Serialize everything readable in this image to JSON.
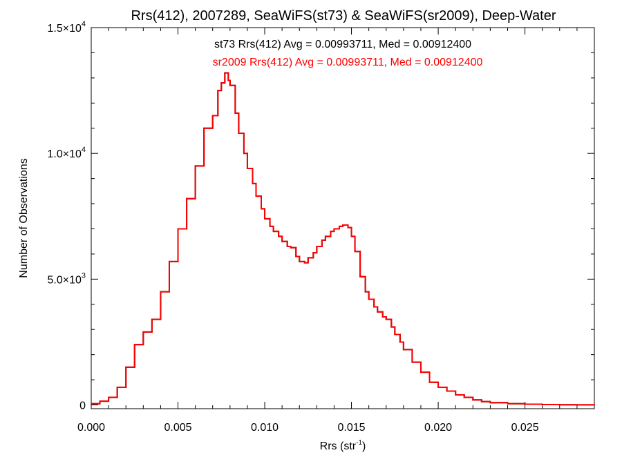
{
  "chart_data": {
    "type": "line",
    "title": "Rrs(412), 2007289, SeaWiFS(st73) & SeaWiFS(sr2009), Deep-Water",
    "xlabel_main": "Rrs (str",
    "xlabel_sup": "-1",
    "xlabel_close": ")",
    "ylabel": "Number of Observations",
    "xlim": [
      0.0,
      0.029
    ],
    "ylim": [
      -150,
      15000
    ],
    "x_ticks": [
      {
        "value": 0.0,
        "label": "0.000"
      },
      {
        "value": 0.005,
        "label": "0.005"
      },
      {
        "value": 0.01,
        "label": "0.010"
      },
      {
        "value": 0.015,
        "label": "0.015"
      },
      {
        "value": 0.02,
        "label": "0.020"
      },
      {
        "value": 0.025,
        "label": "0.025"
      }
    ],
    "x_minor_step": 0.001,
    "y_ticks": [
      {
        "value": 0,
        "mant": "0",
        "exp": ""
      },
      {
        "value": 5000,
        "mant": "5.0×10",
        "exp": "3"
      },
      {
        "value": 10000,
        "mant": "1.0×10",
        "exp": "4"
      },
      {
        "value": 15000,
        "mant": "1.5×10",
        "exp": "4"
      }
    ],
    "y_minor_step": 1000,
    "annotations": [
      {
        "text": "st73 Rrs(412) Avg = 0.00993711, Med = 0.00912400",
        "color": "#000000"
      },
      {
        "text": "sr2009 Rrs(412) Avg = 0.00993711, Med = 0.00912400",
        "color": "#ff0000"
      }
    ],
    "series": [
      {
        "name": "st73",
        "color": "#000000",
        "x": [
          0.0,
          0.0005,
          0.001,
          0.0015,
          0.002,
          0.0025,
          0.003,
          0.0035,
          0.004,
          0.0045,
          0.005,
          0.0055,
          0.006,
          0.0065,
          0.007,
          0.0073,
          0.0075,
          0.0077,
          0.0079,
          0.008,
          0.0083,
          0.0085,
          0.0088,
          0.009,
          0.0093,
          0.0095,
          0.0098,
          0.01,
          0.0103,
          0.0105,
          0.0108,
          0.011,
          0.0113,
          0.0115,
          0.0118,
          0.012,
          0.0123,
          0.0125,
          0.0128,
          0.013,
          0.0133,
          0.0135,
          0.0138,
          0.014,
          0.0143,
          0.0145,
          0.0148,
          0.015,
          0.0152,
          0.0155,
          0.0158,
          0.016,
          0.0163,
          0.0165,
          0.0168,
          0.017,
          0.0173,
          0.0175,
          0.0178,
          0.018,
          0.0185,
          0.019,
          0.0195,
          0.02,
          0.0205,
          0.021,
          0.0215,
          0.022,
          0.0225,
          0.023,
          0.024,
          0.025,
          0.026,
          0.027,
          0.028,
          0.029
        ],
        "y": [
          50,
          150,
          300,
          700,
          1500,
          2400,
          2900,
          3400,
          4500,
          5700,
          7000,
          8200,
          9500,
          11000,
          11500,
          12500,
          12800,
          13200,
          12900,
          12700,
          11600,
          10800,
          10000,
          9400,
          8800,
          8300,
          7800,
          7400,
          7100,
          6900,
          6700,
          6500,
          6300,
          6250,
          5900,
          5700,
          5650,
          5850,
          6050,
          6300,
          6550,
          6700,
          6900,
          7000,
          7100,
          7150,
          7050,
          6700,
          6100,
          5100,
          4500,
          4200,
          3900,
          3700,
          3500,
          3400,
          3100,
          2800,
          2500,
          2200,
          1700,
          1300,
          900,
          700,
          550,
          400,
          300,
          200,
          130,
          90,
          50,
          30,
          15,
          8,
          4,
          2
        ]
      },
      {
        "name": "sr2009",
        "color": "#ff0000",
        "x": [
          0.0,
          0.0005,
          0.001,
          0.0015,
          0.002,
          0.0025,
          0.003,
          0.0035,
          0.004,
          0.0045,
          0.005,
          0.0055,
          0.006,
          0.0065,
          0.007,
          0.0073,
          0.0075,
          0.0077,
          0.0079,
          0.008,
          0.0083,
          0.0085,
          0.0088,
          0.009,
          0.0093,
          0.0095,
          0.0098,
          0.01,
          0.0103,
          0.0105,
          0.0108,
          0.011,
          0.0113,
          0.0115,
          0.0118,
          0.012,
          0.0123,
          0.0125,
          0.0128,
          0.013,
          0.0133,
          0.0135,
          0.0138,
          0.014,
          0.0143,
          0.0145,
          0.0148,
          0.015,
          0.0152,
          0.0155,
          0.0158,
          0.016,
          0.0163,
          0.0165,
          0.0168,
          0.017,
          0.0173,
          0.0175,
          0.0178,
          0.018,
          0.0185,
          0.019,
          0.0195,
          0.02,
          0.0205,
          0.021,
          0.0215,
          0.022,
          0.0225,
          0.023,
          0.024,
          0.025,
          0.026,
          0.027,
          0.028,
          0.029
        ],
        "y": [
          50,
          150,
          300,
          700,
          1500,
          2400,
          2900,
          3400,
          4500,
          5700,
          7000,
          8200,
          9500,
          11000,
          11500,
          12500,
          12800,
          13200,
          12900,
          12700,
          11600,
          10800,
          10000,
          9400,
          8800,
          8300,
          7800,
          7400,
          7100,
          6900,
          6700,
          6500,
          6300,
          6250,
          5900,
          5700,
          5650,
          5850,
          6050,
          6300,
          6550,
          6700,
          6900,
          7000,
          7100,
          7150,
          7050,
          6700,
          6100,
          5100,
          4500,
          4200,
          3900,
          3700,
          3500,
          3400,
          3100,
          2800,
          2500,
          2200,
          1700,
          1300,
          900,
          700,
          550,
          400,
          300,
          200,
          130,
          90,
          50,
          30,
          15,
          8,
          4,
          2
        ]
      }
    ],
    "grid": false,
    "legend": "none"
  }
}
